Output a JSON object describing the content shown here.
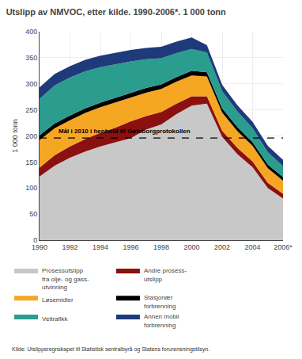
{
  "chart_data": {
    "type": "area",
    "stacked": true,
    "title": "Utslipp av NMVOC, etter kilde. 1990-2006*. 1 000 tonn",
    "ylabel": "1 000 tonn",
    "x": [
      1990,
      1991,
      1992,
      1993,
      1994,
      1995,
      1996,
      1997,
      1998,
      1999,
      2000,
      2001,
      2002,
      2003,
      2004,
      2005,
      2006
    ],
    "series": [
      {
        "name": "Prosessutslipp\nfra olje- og gass-\nutvinning",
        "color": "#c8c8c8",
        "values": [
          122,
          143,
          158,
          170,
          180,
          188,
          196,
          212,
          222,
          242,
          258,
          262,
          198,
          165,
          140,
          100,
          80
        ]
      },
      {
        "name": "Andre prosess-\nutslipp",
        "color": "#8b1010",
        "values": [
          17,
          20,
          22,
          24,
          26,
          28,
          32,
          26,
          24,
          20,
          18,
          14,
          12,
          12,
          11,
          10,
          9
        ]
      },
      {
        "name": "Løsemidler",
        "color": "#f5a623",
        "values": [
          53,
          52,
          50,
          50,
          49,
          48,
          46,
          45,
          44,
          42,
          40,
          38,
          35,
          32,
          30,
          28,
          25
        ]
      },
      {
        "name": "Stasjonær\nforbrenning",
        "color": "#000000",
        "values": [
          9,
          9,
          9,
          9,
          9,
          9,
          9,
          9,
          9,
          9,
          9,
          8,
          8,
          8,
          7,
          7,
          7
        ]
      },
      {
        "name": "Veitrafikk",
        "color": "#2a9d8f",
        "values": [
          70,
          73,
          73,
          71,
          68,
          65,
          60,
          55,
          50,
          46,
          42,
          38,
          33,
          30,
          27,
          24,
          21
        ]
      },
      {
        "name": "Annen mobil\nforbrenning",
        "color": "#1e3a7a",
        "values": [
          22,
          22,
          22,
          22,
          22,
          22,
          22,
          22,
          22,
          22,
          22,
          14,
          12,
          12,
          12,
          12,
          12
        ]
      }
    ],
    "xlim": [
      1990,
      2006
    ],
    "xticks": [
      1990,
      1992,
      1994,
      1996,
      1998,
      2000,
      2002,
      2004,
      {
        "value": 2006,
        "label": "2006*"
      }
    ],
    "ylim": [
      0,
      400
    ],
    "yticks": [
      0,
      50,
      100,
      150,
      200,
      250,
      300,
      350,
      400
    ],
    "grid": true,
    "legend": "bottom",
    "reference_line": {
      "y": 196,
      "label": "Mål i 2010 i henhold til Gøteborgprotokollen",
      "color": "#000000"
    },
    "source": "Kilde: Utslippsregnskapet til Statistisk sentralbyrå og Statens forurensningstilsyn."
  }
}
